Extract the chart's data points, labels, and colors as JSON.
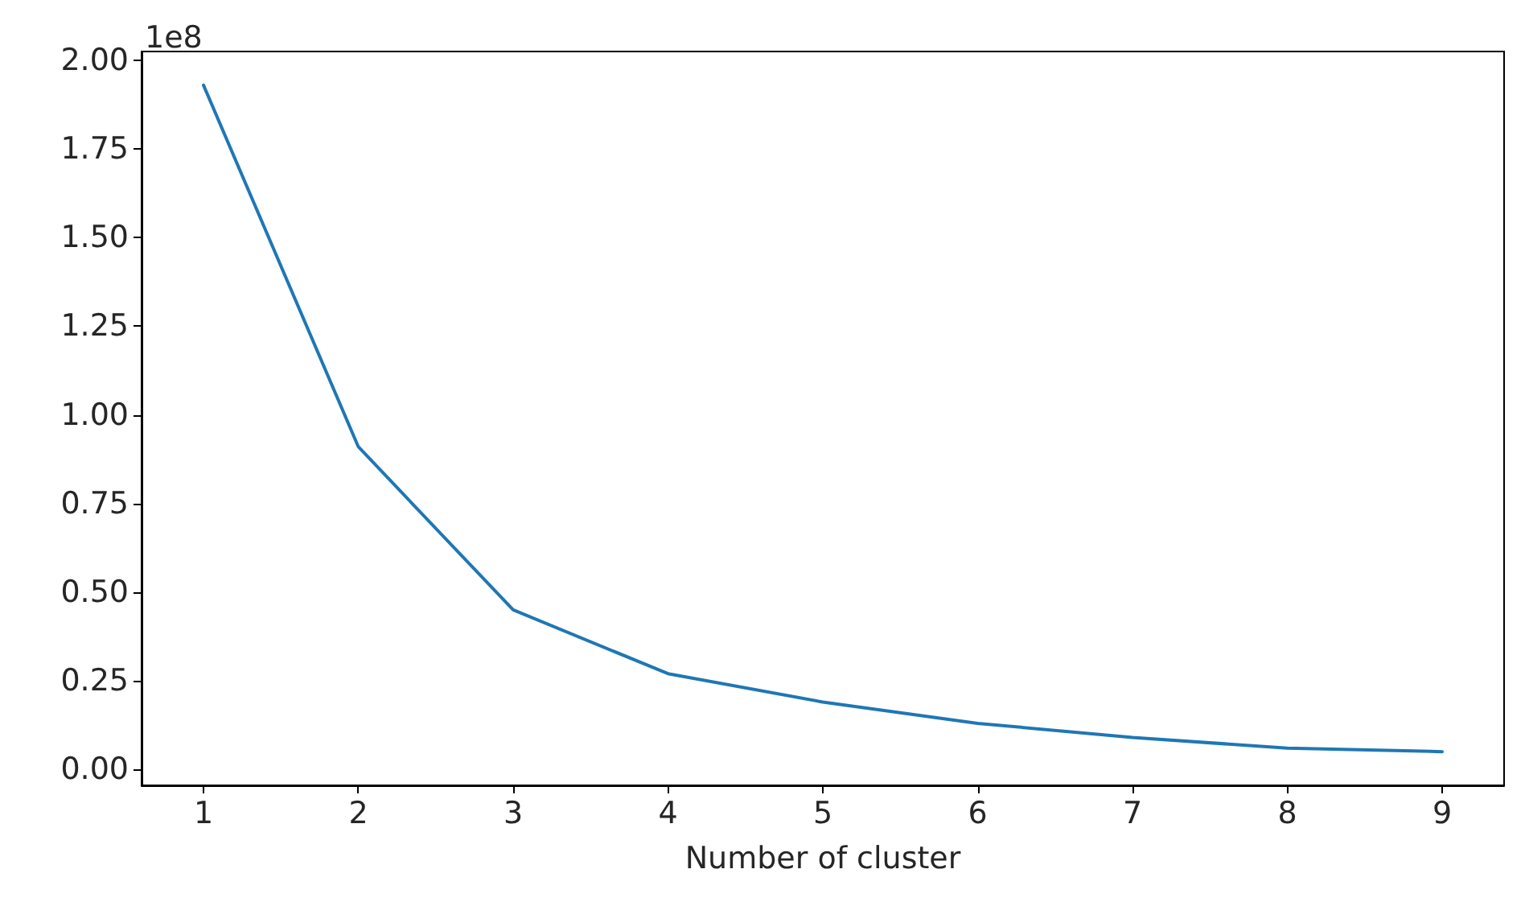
{
  "chart_data": {
    "type": "line",
    "xlabel": "Number of cluster",
    "x": [
      1,
      2,
      3,
      4,
      5,
      6,
      7,
      8,
      9
    ],
    "series": [
      {
        "color": "#1f77b4",
        "values": [
          1.93,
          0.91,
          0.45,
          0.27,
          0.19,
          0.13,
          0.09,
          0.06,
          0.05
        ]
      }
    ],
    "xlim": [
      0.6,
      9.4
    ],
    "xticks": [
      1,
      2,
      3,
      4,
      5,
      6,
      7,
      8,
      9
    ],
    "ylim": [
      -0.045,
      2.025
    ],
    "yticks": [
      {
        "value": 0,
        "label": "0.00"
      },
      {
        "value": 0.25,
        "label": "0.25"
      },
      {
        "value": 0.5,
        "label": "0.50"
      },
      {
        "value": 0.75,
        "label": "0.75"
      },
      {
        "value": 1,
        "label": "1.00"
      },
      {
        "value": 1.25,
        "label": "1.25"
      },
      {
        "value": 1.5,
        "label": "1.50"
      },
      {
        "value": 1.75,
        "label": "1.75"
      },
      {
        "value": 2,
        "label": "2.00"
      }
    ],
    "annotations": [
      "1e8"
    ],
    "grid": false,
    "marker": "none",
    "line_style": "solid"
  }
}
